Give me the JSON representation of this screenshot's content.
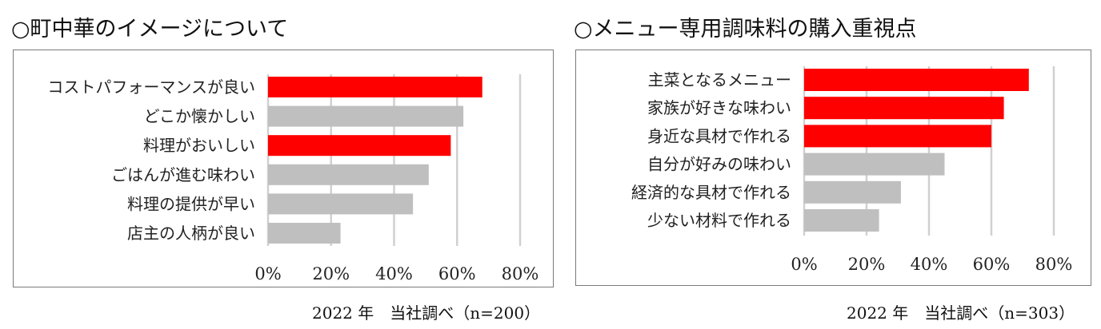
{
  "chart_data": [
    {
      "type": "bar",
      "orientation": "horizontal",
      "title": "○町中華のイメージについて",
      "categories": [
        "コストパフォーマンスが良い",
        "どこか懐かしい",
        "料理がおいしい",
        "ごはんが進む味わい",
        "料理の提供が早い",
        "店主の人柄が良い"
      ],
      "values": [
        68,
        62,
        58,
        51,
        46,
        23
      ],
      "bar_colors": [
        "#ff0000",
        "#bfbfbf",
        "#ff0000",
        "#bfbfbf",
        "#bfbfbf",
        "#bfbfbf"
      ],
      "xlim": [
        0,
        80
      ],
      "x_ticks": [
        "0%",
        "20%",
        "40%",
        "60%",
        "80%"
      ],
      "grid": true,
      "note": "2022 年　当社調べ（n=200）"
    },
    {
      "type": "bar",
      "orientation": "horizontal",
      "title": "○メニュー専用調味料の購入重視点",
      "categories": [
        "主菜となるメニュー",
        "家族が好きな味わい",
        "身近な具材で作れる",
        "自分が好みの味わい",
        "経済的な具材で作れる",
        "少ない材料で作れる"
      ],
      "values": [
        72,
        64,
        60,
        45,
        31,
        24
      ],
      "bar_colors": [
        "#ff0000",
        "#ff0000",
        "#ff0000",
        "#bfbfbf",
        "#bfbfbf",
        "#bfbfbf"
      ],
      "xlim": [
        0,
        80
      ],
      "x_ticks": [
        "0%",
        "20%",
        "40%",
        "60%",
        "80%"
      ],
      "grid": true,
      "note": "2022 年　当社調べ（n=303）"
    }
  ]
}
